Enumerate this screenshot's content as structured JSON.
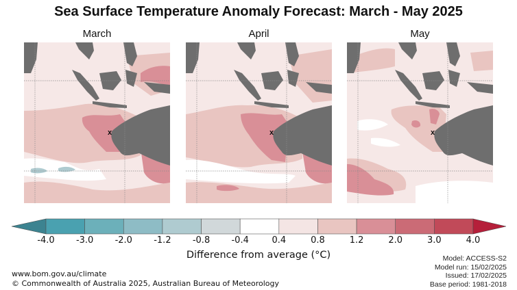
{
  "title": "Sea Surface Temperature Anomaly Forecast: March - May 2025",
  "panels": [
    {
      "label": "March",
      "marker": "x"
    },
    {
      "label": "April",
      "marker": "x"
    },
    {
      "label": "May",
      "marker": "x"
    }
  ],
  "colors": {
    "land": "#6e6e6e",
    "grid": "#8a8a8a"
  },
  "legend": {
    "title": "Difference from average (°C)",
    "ticks": [
      "-4.0",
      "-3.0",
      "-2.0",
      "-1.2",
      "-0.8",
      "-0.4",
      "0.4",
      "0.8",
      "1.2",
      "2.0",
      "3.0",
      "4.0"
    ],
    "bins": [
      {
        "range": "< -4.0",
        "color": "#3c8390"
      },
      {
        "range": "-4.0 to -3.0",
        "color": "#4aa1b0"
      },
      {
        "range": "-3.0 to -2.0",
        "color": "#6cb0ba"
      },
      {
        "range": "-2.0 to -1.2",
        "color": "#8ebcc5"
      },
      {
        "range": "-1.2 to -0.8",
        "color": "#afcbd0"
      },
      {
        "range": "-0.8 to -0.4",
        "color": "#d1d8da"
      },
      {
        "range": "-0.4 to 0.4",
        "color": "#ffffff"
      },
      {
        "range": "0.4 to 0.8",
        "color": "#f4e5e4"
      },
      {
        "range": "0.8 to 1.2",
        "color": "#e9c5c1"
      },
      {
        "range": "1.2 to 2.0",
        "color": "#d98f97"
      },
      {
        "range": "2.0 to 3.0",
        "color": "#cb6b76"
      },
      {
        "range": "3.0 to 4.0",
        "color": "#c14a59"
      },
      {
        "range": "> 4.0",
        "color": "#b51f3a"
      }
    ]
  },
  "footer": {
    "url": "www.bom.gov.au/climate",
    "copyright": "© Commonwealth of Australia 2025, Australian Bureau of Meteorology"
  },
  "metadata": {
    "model": "Model: ACCESS-S2",
    "model_run": "Model run: 15/02/2025",
    "issued": "Issued: 17/02/2025",
    "base_period": "Base period: 1981-2018"
  }
}
